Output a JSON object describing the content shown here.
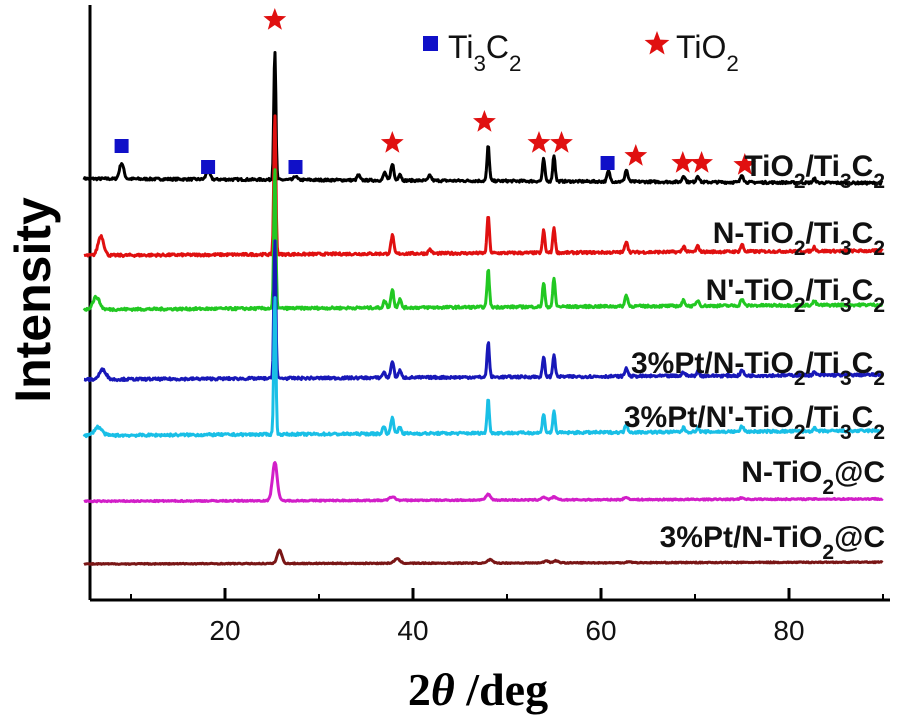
{
  "chart_data": {
    "type": "line",
    "title": "",
    "xlabel": "2θ /deg",
    "ylabel": "Intensity",
    "xlim": [
      5,
      90
    ],
    "xticks": [
      20,
      40,
      60,
      80
    ],
    "grid": false,
    "legend_position": "top-right",
    "legend": [
      {
        "name": "Ti3C2",
        "marker": "square",
        "color": "#1010c8"
      },
      {
        "name": "TiO2",
        "marker": "star",
        "color": "#e01010"
      }
    ],
    "series": [
      {
        "name": "TiO2/Ti3C2",
        "color": "#000000",
        "peaks": [
          {
            "x": 9.0,
            "h": 0.12,
            "w": 0.45
          },
          {
            "x": 18.2,
            "h": 0.07,
            "w": 0.4
          },
          {
            "x": 25.3,
            "h": 1.0,
            "w": 0.22
          },
          {
            "x": 27.5,
            "h": 0.03,
            "w": 0.3
          },
          {
            "x": 34.2,
            "h": 0.04,
            "w": 0.3
          },
          {
            "x": 37.0,
            "h": 0.06,
            "w": 0.3
          },
          {
            "x": 37.8,
            "h": 0.13,
            "w": 0.3
          },
          {
            "x": 38.6,
            "h": 0.05,
            "w": 0.3
          },
          {
            "x": 41.8,
            "h": 0.04,
            "w": 0.3
          },
          {
            "x": 48.0,
            "h": 0.27,
            "w": 0.25
          },
          {
            "x": 53.9,
            "h": 0.17,
            "w": 0.25
          },
          {
            "x": 55.0,
            "h": 0.2,
            "w": 0.25
          },
          {
            "x": 60.8,
            "h": 0.08,
            "w": 0.3
          },
          {
            "x": 62.7,
            "h": 0.09,
            "w": 0.3
          },
          {
            "x": 68.8,
            "h": 0.05,
            "w": 0.3
          },
          {
            "x": 70.3,
            "h": 0.05,
            "w": 0.3
          },
          {
            "x": 75.0,
            "h": 0.06,
            "w": 0.3
          },
          {
            "x": 82.7,
            "h": 0.03,
            "w": 0.3
          }
        ]
      },
      {
        "name": "N-TiO2/Ti3C2",
        "color": "#e01010",
        "peaks": [
          {
            "x": 6.8,
            "h": 0.14,
            "w": 0.6
          },
          {
            "x": 25.3,
            "h": 1.0,
            "w": 0.22
          },
          {
            "x": 37.8,
            "h": 0.13,
            "w": 0.3
          },
          {
            "x": 41.8,
            "h": 0.03,
            "w": 0.3
          },
          {
            "x": 48.0,
            "h": 0.27,
            "w": 0.25
          },
          {
            "x": 53.9,
            "h": 0.16,
            "w": 0.25
          },
          {
            "x": 55.0,
            "h": 0.18,
            "w": 0.25
          },
          {
            "x": 62.7,
            "h": 0.08,
            "w": 0.3
          },
          {
            "x": 68.8,
            "h": 0.04,
            "w": 0.3
          },
          {
            "x": 70.3,
            "h": 0.04,
            "w": 0.3
          },
          {
            "x": 75.0,
            "h": 0.05,
            "w": 0.3
          },
          {
            "x": 82.7,
            "h": 0.03,
            "w": 0.3
          }
        ]
      },
      {
        "name": "N'-TiO2/Ti3C2",
        "color": "#22c822",
        "peaks": [
          {
            "x": 6.3,
            "h": 0.09,
            "w": 0.7
          },
          {
            "x": 25.3,
            "h": 1.0,
            "w": 0.22
          },
          {
            "x": 37.0,
            "h": 0.05,
            "w": 0.3
          },
          {
            "x": 37.8,
            "h": 0.13,
            "w": 0.3
          },
          {
            "x": 38.6,
            "h": 0.06,
            "w": 0.3
          },
          {
            "x": 48.0,
            "h": 0.27,
            "w": 0.25
          },
          {
            "x": 53.9,
            "h": 0.17,
            "w": 0.25
          },
          {
            "x": 55.0,
            "h": 0.2,
            "w": 0.25
          },
          {
            "x": 62.7,
            "h": 0.08,
            "w": 0.3
          },
          {
            "x": 68.8,
            "h": 0.04,
            "w": 0.3
          },
          {
            "x": 70.3,
            "h": 0.04,
            "w": 0.3
          },
          {
            "x": 75.0,
            "h": 0.05,
            "w": 0.3
          },
          {
            "x": 82.7,
            "h": 0.03,
            "w": 0.3
          }
        ]
      },
      {
        "name": "3%Pt/N-TiO2/Ti3C2",
        "color": "#1818b8",
        "peaks": [
          {
            "x": 7.0,
            "h": 0.07,
            "w": 0.7
          },
          {
            "x": 25.3,
            "h": 1.0,
            "w": 0.22
          },
          {
            "x": 36.9,
            "h": 0.04,
            "w": 0.3
          },
          {
            "x": 37.8,
            "h": 0.12,
            "w": 0.3
          },
          {
            "x": 38.6,
            "h": 0.05,
            "w": 0.3
          },
          {
            "x": 48.0,
            "h": 0.25,
            "w": 0.25
          },
          {
            "x": 53.9,
            "h": 0.14,
            "w": 0.25
          },
          {
            "x": 55.0,
            "h": 0.16,
            "w": 0.25
          },
          {
            "x": 62.7,
            "h": 0.06,
            "w": 0.3
          },
          {
            "x": 68.8,
            "h": 0.03,
            "w": 0.3
          },
          {
            "x": 70.3,
            "h": 0.03,
            "w": 0.3
          },
          {
            "x": 75.0,
            "h": 0.04,
            "w": 0.3
          },
          {
            "x": 82.7,
            "h": 0.02,
            "w": 0.3
          }
        ]
      },
      {
        "name": "3%Pt/N'-TiO2/Ti3C2",
        "color": "#19bfe6",
        "peaks": [
          {
            "x": 6.5,
            "h": 0.06,
            "w": 0.8
          },
          {
            "x": 25.3,
            "h": 1.0,
            "w": 0.22
          },
          {
            "x": 36.9,
            "h": 0.05,
            "w": 0.3
          },
          {
            "x": 37.8,
            "h": 0.12,
            "w": 0.3
          },
          {
            "x": 38.6,
            "h": 0.05,
            "w": 0.3
          },
          {
            "x": 48.0,
            "h": 0.24,
            "w": 0.25
          },
          {
            "x": 53.9,
            "h": 0.14,
            "w": 0.25
          },
          {
            "x": 55.0,
            "h": 0.15,
            "w": 0.25
          },
          {
            "x": 62.7,
            "h": 0.06,
            "w": 0.3
          },
          {
            "x": 68.8,
            "h": 0.03,
            "w": 0.3
          },
          {
            "x": 70.3,
            "h": 0.03,
            "w": 0.3
          },
          {
            "x": 75.0,
            "h": 0.04,
            "w": 0.3
          },
          {
            "x": 82.7,
            "h": 0.02,
            "w": 0.3
          }
        ]
      },
      {
        "name": "N-TiO2@C",
        "color": "#d21ec8",
        "peaks": [
          {
            "x": 25.3,
            "h": 0.55,
            "w": 0.5
          },
          {
            "x": 37.8,
            "h": 0.05,
            "w": 0.6
          },
          {
            "x": 48.0,
            "h": 0.08,
            "w": 0.5
          },
          {
            "x": 53.9,
            "h": 0.04,
            "w": 0.5
          },
          {
            "x": 55.0,
            "h": 0.04,
            "w": 0.5
          },
          {
            "x": 62.7,
            "h": 0.03,
            "w": 0.5
          },
          {
            "x": 75.0,
            "h": 0.02,
            "w": 0.5
          }
        ]
      },
      {
        "name": "3%Pt/N-TiO2@C",
        "color": "#7a1616",
        "peaks": [
          {
            "x": 25.8,
            "h": 0.24,
            "w": 0.5
          },
          {
            "x": 38.3,
            "h": 0.08,
            "w": 0.6
          },
          {
            "x": 48.2,
            "h": 0.06,
            "w": 0.5
          },
          {
            "x": 54.2,
            "h": 0.04,
            "w": 0.5
          },
          {
            "x": 55.2,
            "h": 0.04,
            "w": 0.5
          },
          {
            "x": 63.0,
            "h": 0.02,
            "w": 0.5
          }
        ]
      }
    ],
    "ti3c2_markers": [
      9.0,
      18.2,
      27.5,
      60.7
    ],
    "tio2_markers": [
      25.3,
      37.8,
      47.6,
      53.4,
      55.8,
      63.7,
      68.7,
      70.7,
      75.3
    ]
  }
}
